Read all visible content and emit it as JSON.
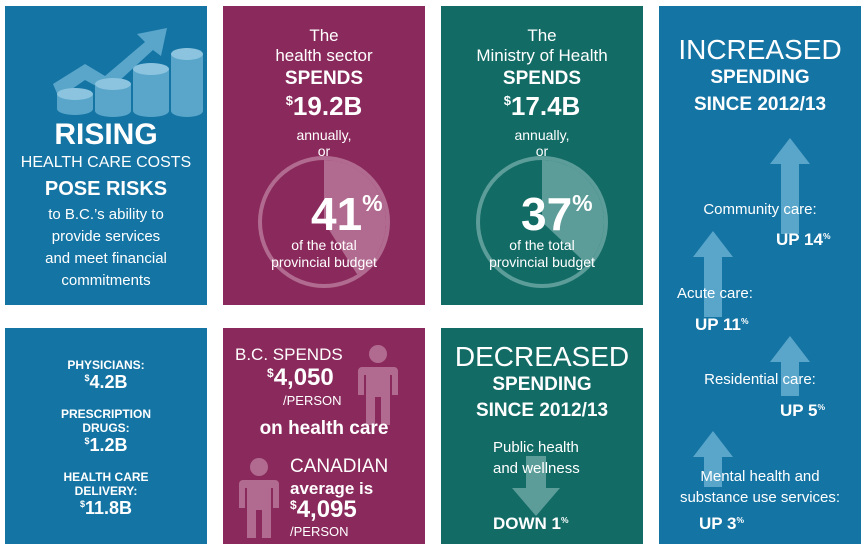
{
  "tile_rising": {
    "line1": "RISING",
    "line2": "HEALTH CARE COSTS",
    "line3": "POSE RISKS",
    "line4": "to B.C.’s ability to",
    "line5": "provide services",
    "line6": "and meet financial",
    "line7": "commitments",
    "icon": "rising-coins-icon"
  },
  "tile_sector": {
    "line1": "The",
    "line2": "health sector",
    "verb": "SPENDS",
    "currency": "$",
    "amount": "19.2B",
    "line3": "annually,",
    "line4": "or",
    "percent": "41",
    "percent_sign": "%",
    "line5": "of the total",
    "line6": "provincial budget",
    "share": 0.41
  },
  "tile_ministry": {
    "line1": "The",
    "line2": "Ministry of Health",
    "verb": "SPENDS",
    "currency": "$",
    "amount": "17.4B",
    "line3": "annually,",
    "line4": "or",
    "percent": "37",
    "percent_sign": "%",
    "line5": "of the total",
    "line6": "provincial budget",
    "share": 0.37
  },
  "tile_increased": {
    "title1": "INCREASED",
    "title2": "SPENDING",
    "title3": "SINCE 2012/13",
    "items": [
      {
        "label": "Community care:",
        "value": "UP 14",
        "pct": "%"
      },
      {
        "label": "Acute care:",
        "value": "UP 11",
        "pct": "%"
      },
      {
        "label": "Residential care:",
        "value": "UP 5",
        "pct": "%"
      },
      {
        "label_1": "Mental health and",
        "label_2": "substance use services:",
        "value": "UP 3",
        "pct": "%"
      }
    ]
  },
  "tile_breakdown": {
    "items": [
      {
        "label_1": "PHYSICIANS:",
        "currency": "$",
        "amount": "4.2B"
      },
      {
        "label_1": "PRESCRIPTION",
        "label_2": "DRUGS:",
        "currency": "$",
        "amount": "1.2B"
      },
      {
        "label_1": "HEALTH CARE",
        "label_2": "DELIVERY:",
        "currency": "$",
        "amount": "11.8B"
      }
    ]
  },
  "tile_per_person": {
    "line1": "B.C. SPENDS",
    "currency": "$",
    "amount1": "4,050",
    "unit1": "/PERSON",
    "line2": "on health care",
    "line3": "CANADIAN",
    "line4": "average is",
    "amount2": "4,095",
    "unit2": "/PERSON"
  },
  "tile_decreased": {
    "title1": "DECREASED",
    "title2": "SPENDING",
    "title3": "SINCE 2012/13",
    "label1": "Public health",
    "label2": "and wellness",
    "value": "DOWN 1",
    "pct": "%"
  }
}
